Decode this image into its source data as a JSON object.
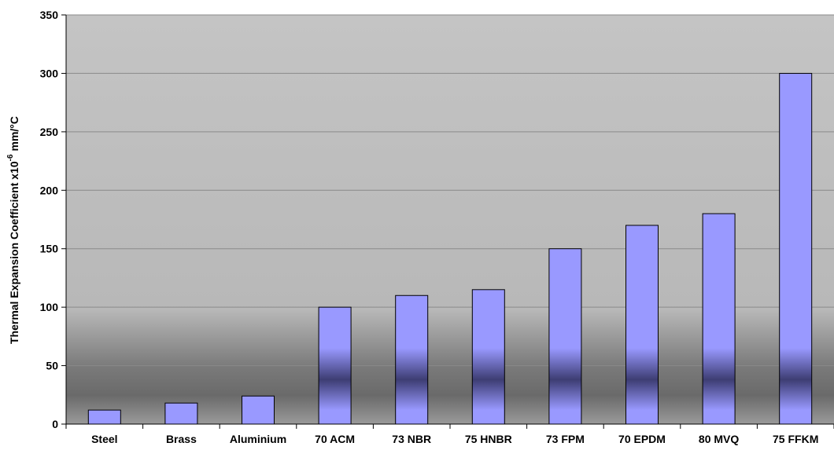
{
  "chart_data": {
    "type": "bar",
    "title": "",
    "xlabel": "",
    "ylabel": "Thermal Expansion Coefficient x10",
    "ylabel_superscript": "-6",
    "ylabel_unit": "mm/°C",
    "categories": [
      "Steel",
      "Brass",
      "Aluminium",
      "70 ACM",
      "73 NBR",
      "75 HNBR",
      "73 FPM",
      "70 EPDM",
      "80 MVQ",
      "75 FFKM"
    ],
    "values": [
      12,
      18,
      24,
      100,
      110,
      115,
      150,
      170,
      180,
      300
    ],
    "ylim": [
      0,
      350
    ],
    "yticks": [
      0,
      50,
      100,
      150,
      200,
      250,
      300,
      350
    ],
    "grid": true,
    "legend": "none",
    "colors": {
      "bar": "#9999ff",
      "bar_band": "#3d3d73",
      "plot_bg_top": "#c0c0c0",
      "plot_bg_bottom": "#6b6b6b",
      "gridline": "#8a8a8a"
    }
  }
}
